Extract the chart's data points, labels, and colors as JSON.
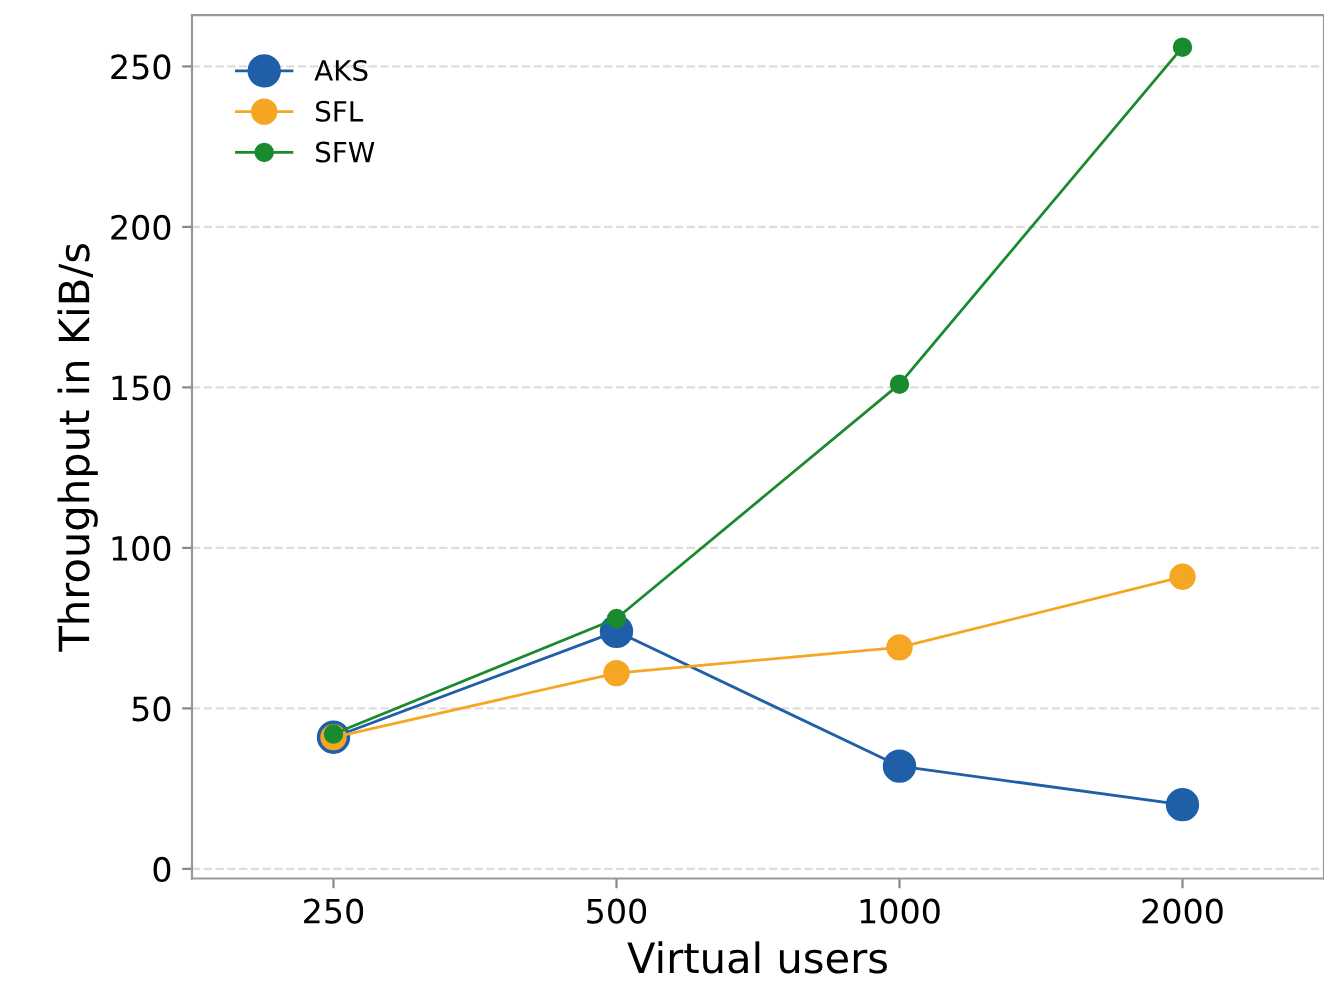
{
  "chart_data": {
    "type": "line",
    "xlabel": "Virtual users",
    "ylabel": "Throughput in KiB/s",
    "categories": [
      "250",
      "500",
      "1000",
      "2000"
    ],
    "series": [
      {
        "name": "AKS",
        "color": "#1f5fa8",
        "values": [
          41,
          74,
          32,
          20
        ]
      },
      {
        "name": "SFL",
        "color": "#f5a623",
        "values": [
          41,
          61,
          69,
          91
        ]
      },
      {
        "name": "SFW",
        "color": "#1a8a2e",
        "values": [
          42,
          78,
          151,
          256
        ]
      }
    ],
    "ylim": [
      -3,
      266
    ],
    "yticks": [
      0,
      50,
      100,
      150,
      200,
      250
    ],
    "grid": "y",
    "legend": "top left",
    "marker": "circle",
    "line_style": "solid"
  }
}
